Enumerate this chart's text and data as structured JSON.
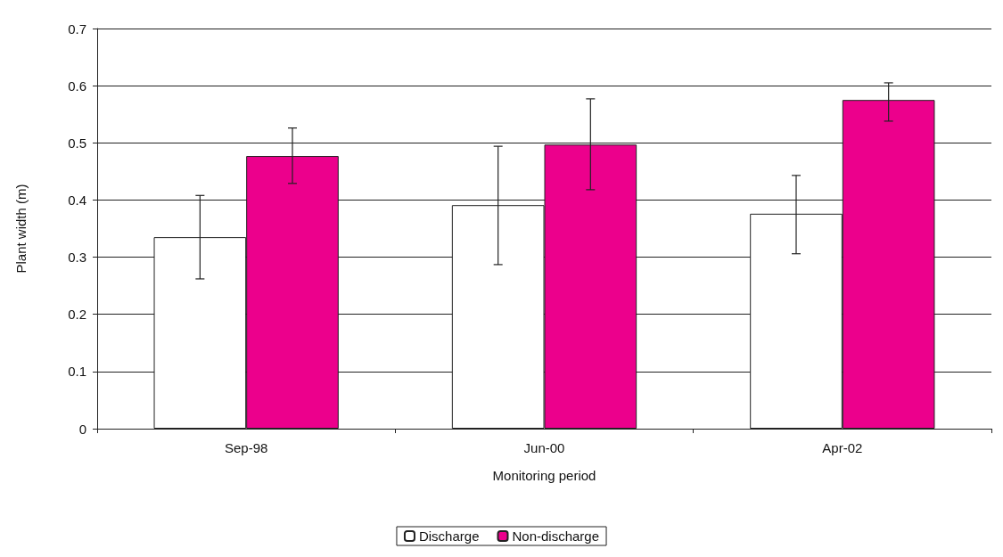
{
  "chart_data": {
    "type": "bar",
    "xlabel": "Monitoring period",
    "ylabel": "Plant width (m)",
    "categories": [
      "Sep-98",
      "Jun-00",
      "Apr-02"
    ],
    "series": [
      {
        "name": "Discharge",
        "color": "#ffffff",
        "values": [
          0.335,
          0.391,
          0.376
        ],
        "errors": [
          [
            0.262,
            0.408
          ],
          [
            0.287,
            0.494
          ],
          [
            0.306,
            0.443
          ]
        ]
      },
      {
        "name": "Non-discharge",
        "color": "#ec008c",
        "values": [
          0.477,
          0.497,
          0.575
        ],
        "errors": [
          [
            0.429,
            0.526
          ],
          [
            0.418,
            0.577
          ],
          [
            0.538,
            0.605
          ]
        ]
      }
    ],
    "ylim": [
      0,
      0.7
    ],
    "yticks": [
      0,
      0.1,
      0.2,
      0.3,
      0.4,
      0.5,
      0.6,
      0.7
    ],
    "grid": "y",
    "legend": "bottom"
  }
}
